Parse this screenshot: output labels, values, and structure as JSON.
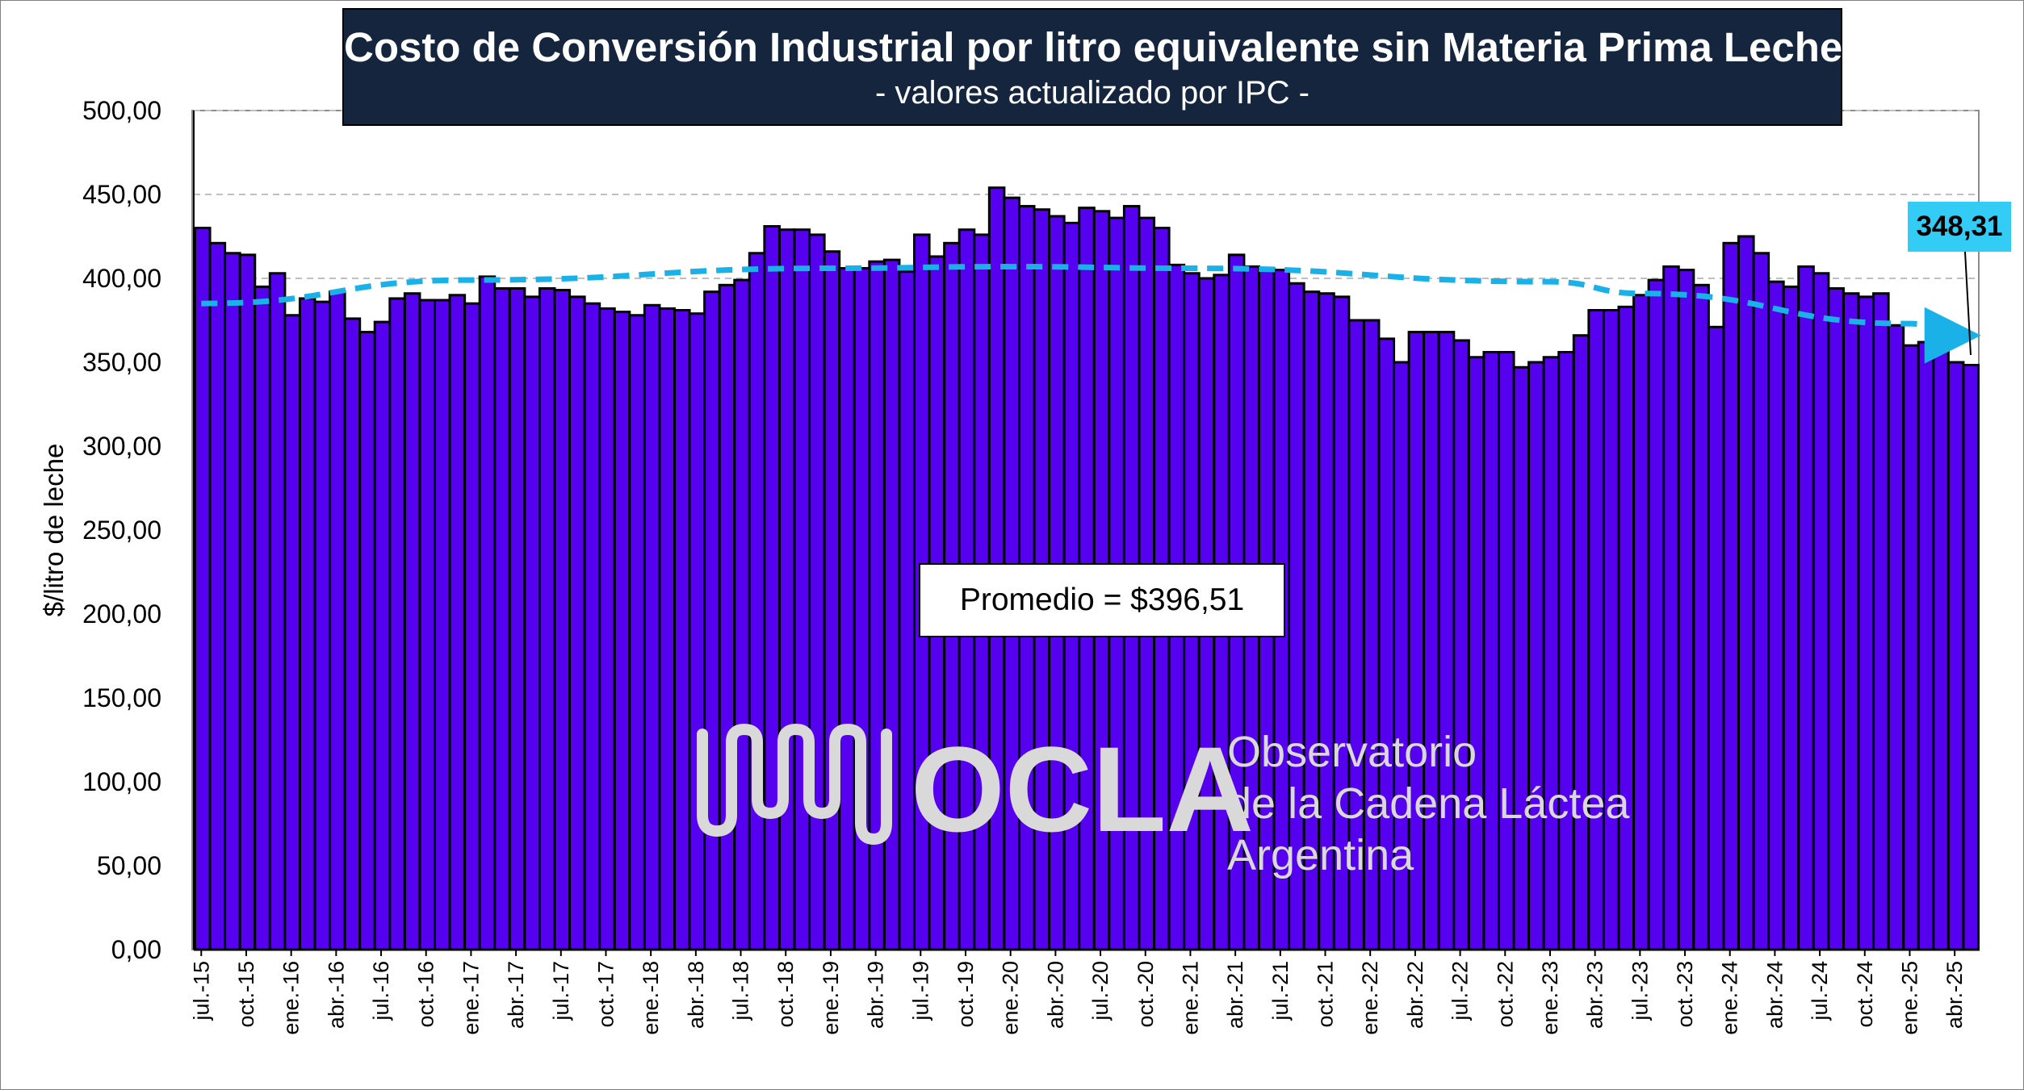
{
  "header": {
    "title": "Costo de Conversión Industrial por litro equivalente sin Materia Prima Leche",
    "subtitle": "- valores actualizado por IPC -"
  },
  "annotations": {
    "average_label": "Promedio = $396,51",
    "last_value_label": "348,31"
  },
  "watermark": {
    "brand": "OCLA",
    "line1": "Observatorio",
    "line2": "de la Cadena Láctea",
    "line3": "Argentina",
    "logo_icon": "ocla-wave-logo-icon"
  },
  "colors": {
    "bar_fill": "#5500ee",
    "bar_outline": "#000000",
    "trend_line": "#1ab0e8",
    "title_background": "#14253d",
    "last_value_background": "#33ccf5",
    "watermark": "#d9d9d9"
  },
  "chart_data": {
    "type": "bar",
    "title": "Costo de Conversión Industrial por litro equivalente sin Materia Prima Leche",
    "subtitle": "- valores actualizado por IPC -",
    "ylabel": "$/litro de leche",
    "xlabel": "",
    "ylim": [
      0,
      500
    ],
    "y_ticks": [
      "0,00",
      "50,00",
      "100,00",
      "150,00",
      "200,00",
      "250,00",
      "300,00",
      "350,00",
      "400,00",
      "450,00",
      "500,00"
    ],
    "grid": "horizontal dashed at 400, 450 and 500",
    "x_tick_labels": [
      "jul.-15",
      "oct.-15",
      "ene.-16",
      "abr.-16",
      "jul.-16",
      "oct.-16",
      "ene.-17",
      "abr.-17",
      "jul.-17",
      "oct.-17",
      "ene.-18",
      "abr.-18",
      "jul.-18",
      "oct.-18",
      "ene.-19",
      "abr.-19",
      "jul.-19",
      "oct.-19",
      "ene.-20",
      "abr.-20",
      "jul.-20",
      "oct.-20",
      "ene.-21",
      "abr.-21",
      "jul.-21",
      "oct.-21",
      "ene.-22",
      "abr.-22",
      "jul.-22",
      "oct.-22",
      "ene.-23",
      "abr.-23",
      "jul.-23",
      "oct.-23",
      "ene.-24",
      "abr.-24",
      "jul.-24",
      "oct.-24",
      "ene.-25",
      "abr.-25"
    ],
    "x_tick_every": 3,
    "categories": [
      "jul.-15",
      "ago.-15",
      "sep.-15",
      "oct.-15",
      "nov.-15",
      "dic.-15",
      "ene.-16",
      "feb.-16",
      "mar.-16",
      "abr.-16",
      "may.-16",
      "jun.-16",
      "jul.-16",
      "ago.-16",
      "sep.-16",
      "oct.-16",
      "nov.-16",
      "dic.-16",
      "ene.-17",
      "feb.-17",
      "mar.-17",
      "abr.-17",
      "may.-17",
      "jun.-17",
      "jul.-17",
      "ago.-17",
      "sep.-17",
      "oct.-17",
      "nov.-17",
      "dic.-17",
      "ene.-18",
      "feb.-18",
      "mar.-18",
      "abr.-18",
      "may.-18",
      "jun.-18",
      "jul.-18",
      "ago.-18",
      "sep.-18",
      "oct.-18",
      "nov.-18",
      "dic.-18",
      "ene.-19",
      "feb.-19",
      "mar.-19",
      "abr.-19",
      "may.-19",
      "jun.-19",
      "jul.-19",
      "ago.-19",
      "sep.-19",
      "oct.-19",
      "nov.-19",
      "dic.-19",
      "ene.-20",
      "feb.-20",
      "mar.-20",
      "abr.-20",
      "may.-20",
      "jun.-20",
      "jul.-20",
      "ago.-20",
      "sep.-20",
      "oct.-20",
      "nov.-20",
      "dic.-20",
      "ene.-21",
      "feb.-21",
      "mar.-21",
      "abr.-21",
      "may.-21",
      "jun.-21",
      "jul.-21",
      "ago.-21",
      "sep.-21",
      "oct.-21",
      "nov.-21",
      "dic.-21",
      "ene.-22",
      "feb.-22",
      "mar.-22",
      "abr.-22",
      "may.-22",
      "jun.-22",
      "jul.-22",
      "ago.-22",
      "sep.-22",
      "oct.-22",
      "nov.-22",
      "dic.-22",
      "ene.-23",
      "feb.-23",
      "mar.-23",
      "abr.-23",
      "may.-23",
      "jun.-23",
      "jul.-23",
      "ago.-23",
      "sep.-23",
      "oct.-23",
      "nov.-23",
      "dic.-23",
      "ene.-24",
      "feb.-24",
      "mar.-24",
      "abr.-24",
      "may.-24",
      "jun.-24",
      "jul.-24",
      "ago.-24",
      "sep.-24",
      "oct.-24",
      "nov.-24",
      "dic.-24",
      "ene.-25",
      "feb.-25",
      "mar.-25",
      "abr.-25",
      "may.-25"
    ],
    "values": [
      430,
      421,
      415,
      414,
      395,
      403,
      378,
      388,
      386,
      392,
      376,
      368,
      374,
      388,
      391,
      387,
      387,
      390,
      385,
      401,
      394,
      394,
      389,
      394,
      393,
      389,
      385,
      382,
      380,
      378,
      384,
      382,
      381,
      379,
      392,
      396,
      399,
      415,
      431,
      429,
      429,
      426,
      416,
      406,
      406,
      410,
      411,
      404,
      426,
      413,
      421,
      429,
      426,
      454,
      448,
      443,
      441,
      437,
      433,
      442,
      440,
      436,
      443,
      436,
      430,
      408,
      403,
      400,
      402,
      414,
      407,
      406,
      405,
      397,
      392,
      391,
      389,
      375,
      375,
      364,
      350,
      368,
      368,
      368,
      363,
      353,
      356,
      356,
      347,
      350,
      353,
      356,
      366,
      381,
      381,
      383,
      390,
      399,
      407,
      405,
      396,
      371,
      421,
      425,
      415,
      398,
      395,
      407,
      403,
      394,
      391,
      389,
      391,
      372,
      360,
      362,
      361,
      350,
      348.31
    ],
    "trend": {
      "type": "polynomial",
      "style": "dashed",
      "x": [
        "jul.-15",
        "ene.-17",
        "ene.-19",
        "ene.-20",
        "ene.-21",
        "ene.-23",
        "jul.-23",
        "ene.-25",
        "may.-25"
      ],
      "values": [
        385,
        399,
        406,
        407,
        406,
        398,
        391,
        373,
        366
      ]
    },
    "average": 396.51,
    "last_value": 348.31
  }
}
